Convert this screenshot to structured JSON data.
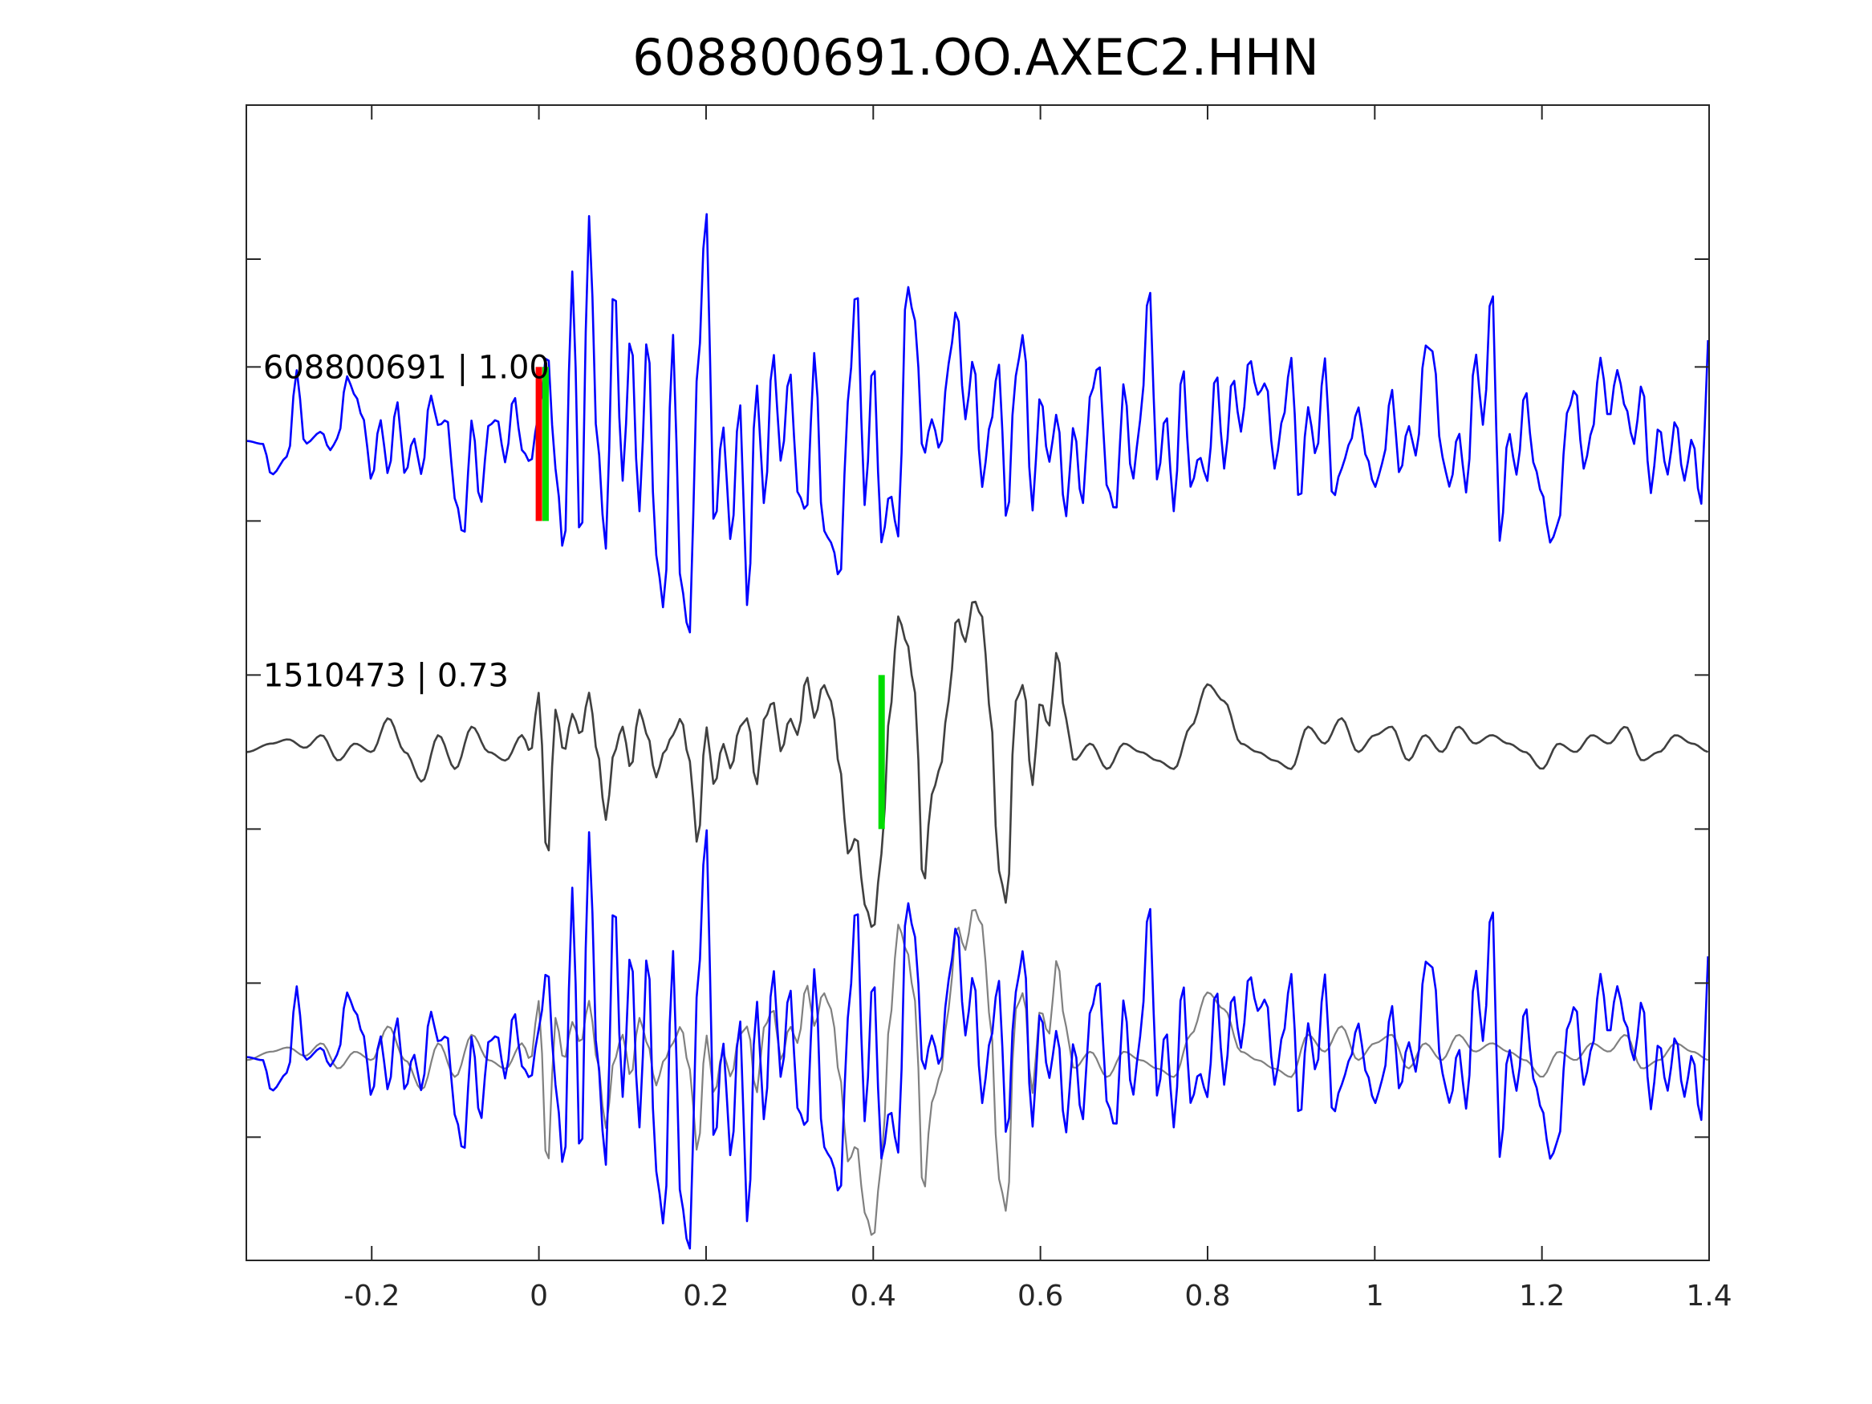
{
  "chart_data": {
    "type": "line",
    "title": "608800691.OO.AXEC2.HHN",
    "xlabel": "",
    "ylabel": "",
    "xlim": [
      -0.35,
      1.4
    ],
    "ylim": [
      -3.3,
      4.2
    ],
    "xticks": [
      -0.2,
      0,
      0.2,
      0.4,
      0.6,
      0.8,
      1,
      1.2,
      1.4
    ],
    "xtick_labels": [
      "-0.2",
      "0",
      "0.2",
      "0.4",
      "0.6",
      "0.8",
      "1",
      "1.2",
      "1.4"
    ],
    "yticks": [
      -2.5,
      -1.5,
      -0.5,
      0.5,
      1.5,
      2.5,
      3.2
    ],
    "grid": false,
    "colors": {
      "template": "#0000ff",
      "detection": "#404040",
      "detection_overlay": "#808080",
      "red_pick": "#ff0000",
      "green_pick": "#00dd00",
      "axis": "#262626"
    },
    "labels": [
      {
        "text": "608800691 | 1.00",
        "x": -0.33,
        "y": 2.5
      },
      {
        "text": "1510473 | 0.73",
        "x": -0.33,
        "y": 0.5
      }
    ],
    "traces": [
      {
        "role": "template",
        "offset": 2.0,
        "gain": 0.4,
        "dt": 0.00402,
        "points": [
          [
            -0.35,
            0.05
          ],
          [
            -0.33,
            0.0
          ],
          [
            -0.32,
            -0.5
          ],
          [
            -0.3,
            -0.2
          ],
          [
            -0.29,
            1.2
          ],
          [
            -0.28,
            0.0
          ],
          [
            -0.26,
            0.2
          ],
          [
            -0.25,
            -0.1
          ],
          [
            -0.24,
            0.1
          ],
          [
            -0.23,
            1.1
          ],
          [
            -0.22,
            0.8
          ],
          [
            -0.21,
            0.4
          ],
          [
            -0.2,
            -0.6
          ],
          [
            -0.19,
            0.4
          ],
          [
            -0.18,
            -0.5
          ],
          [
            -0.17,
            0.7
          ],
          [
            -0.16,
            -0.5
          ],
          [
            -0.15,
            0.1
          ],
          [
            -0.14,
            -0.5
          ],
          [
            -0.13,
            0.8
          ],
          [
            -0.12,
            0.3
          ],
          [
            -0.11,
            0.4
          ],
          [
            -0.1,
            -0.9
          ],
          [
            -0.09,
            -1.5
          ],
          [
            -0.08,
            0.4
          ],
          [
            -0.07,
            -1.0
          ],
          [
            -0.06,
            0.3
          ],
          [
            -0.05,
            0.4
          ],
          [
            -0.04,
            -0.3
          ],
          [
            -0.03,
            0.8
          ],
          [
            -0.02,
            -0.1
          ],
          [
            -0.01,
            -0.3
          ],
          [
            0.0,
            0.5
          ],
          [
            0.01,
            1.5
          ],
          [
            0.02,
            -0.4
          ],
          [
            0.03,
            -1.8
          ],
          [
            0.04,
            2.8
          ],
          [
            0.05,
            -1.8
          ],
          [
            0.06,
            3.7
          ],
          [
            0.07,
            0.0
          ],
          [
            0.08,
            -1.7
          ],
          [
            0.09,
            2.7
          ],
          [
            0.1,
            -0.6
          ],
          [
            0.11,
            1.8
          ],
          [
            0.12,
            -1.1
          ],
          [
            0.13,
            1.8
          ],
          [
            0.14,
            -1.8
          ],
          [
            0.15,
            -2.7
          ],
          [
            0.16,
            1.8
          ],
          [
            0.17,
            -2.3
          ],
          [
            0.18,
            -3.1
          ],
          [
            0.19,
            1.2
          ],
          [
            0.2,
            3.8
          ],
          [
            0.21,
            -1.4
          ],
          [
            0.22,
            0.3
          ],
          [
            0.23,
            -1.6
          ],
          [
            0.24,
            0.7
          ],
          [
            0.25,
            -2.7
          ],
          [
            0.26,
            1.0
          ],
          [
            0.27,
            -1.0
          ],
          [
            0.28,
            1.5
          ],
          [
            0.29,
            -0.3
          ],
          [
            0.3,
            1.2
          ],
          [
            0.31,
            -0.8
          ],
          [
            0.32,
            -1.1
          ],
          [
            0.33,
            1.5
          ],
          [
            0.34,
            -1.4
          ],
          [
            0.35,
            -1.6
          ],
          [
            0.36,
            -2.2
          ],
          [
            0.37,
            0.7
          ],
          [
            0.38,
            2.6
          ],
          [
            0.39,
            -1.0
          ],
          [
            0.4,
            1.4
          ],
          [
            0.41,
            -1.6
          ],
          [
            0.42,
            -0.8
          ],
          [
            0.43,
            -1.5
          ],
          [
            0.44,
            2.6
          ],
          [
            0.45,
            2.0
          ],
          [
            0.46,
            -0.2
          ],
          [
            0.47,
            0.4
          ],
          [
            0.48,
            -0.1
          ],
          [
            0.49,
            1.3
          ],
          [
            0.5,
            2.2
          ],
          [
            0.51,
            0.4
          ],
          [
            0.52,
            1.4
          ],
          [
            0.53,
            -0.7
          ],
          [
            0.54,
            0.3
          ],
          [
            0.55,
            1.3
          ],
          [
            0.56,
            -1.3
          ],
          [
            0.57,
            1.1
          ],
          [
            0.58,
            1.8
          ],
          [
            0.59,
            -1.1
          ],
          [
            0.6,
            0.8
          ],
          [
            0.61,
            -0.3
          ],
          [
            0.62,
            0.5
          ],
          [
            0.63,
            -1.2
          ],
          [
            0.64,
            0.3
          ],
          [
            0.65,
            -1.0
          ],
          [
            0.66,
            0.8
          ],
          [
            0.67,
            1.3
          ],
          [
            0.68,
            -0.7
          ],
          [
            0.69,
            -1.1
          ],
          [
            0.7,
            1.0
          ],
          [
            0.71,
            -0.6
          ],
          [
            0.72,
            0.4
          ],
          [
            0.73,
            2.6
          ],
          [
            0.74,
            -0.6
          ],
          [
            0.75,
            0.5
          ],
          [
            0.76,
            -1.1
          ],
          [
            0.77,
            1.3
          ],
          [
            0.78,
            -0.7
          ],
          [
            0.79,
            -0.2
          ],
          [
            0.8,
            -0.6
          ],
          [
            0.81,
            1.2
          ],
          [
            0.82,
            -0.4
          ],
          [
            0.83,
            1.1
          ],
          [
            0.84,
            0.2
          ],
          [
            0.85,
            1.4
          ],
          [
            0.86,
            0.8
          ],
          [
            0.87,
            1.0
          ],
          [
            0.88,
            -0.4
          ],
          [
            0.89,
            0.4
          ],
          [
            0.9,
            1.4
          ],
          [
            0.91,
            -1.0
          ],
          [
            0.92,
            0.6
          ],
          [
            0.93,
            -0.2
          ],
          [
            0.94,
            1.4
          ],
          [
            0.95,
            -0.9
          ],
          [
            0.96,
            -0.4
          ],
          [
            0.97,
            0.0
          ],
          [
            0.98,
            0.6
          ],
          [
            0.99,
            -0.2
          ],
          [
            1.0,
            -0.7
          ],
          [
            1.01,
            -0.3
          ],
          [
            1.02,
            0.9
          ],
          [
            1.03,
            -0.5
          ],
          [
            1.04,
            0.3
          ],
          [
            1.05,
            -0.2
          ],
          [
            1.06,
            1.6
          ],
          [
            1.07,
            1.5
          ],
          [
            1.08,
            -0.2
          ],
          [
            1.09,
            -0.7
          ],
          [
            1.1,
            0.2
          ],
          [
            1.11,
            -0.8
          ],
          [
            1.12,
            1.5
          ],
          [
            1.13,
            0.3
          ],
          [
            1.14,
            2.6
          ],
          [
            1.15,
            -1.6
          ],
          [
            1.16,
            0.2
          ],
          [
            1.17,
            -0.5
          ],
          [
            1.18,
            0.9
          ],
          [
            1.19,
            -0.3
          ],
          [
            1.2,
            -0.8
          ],
          [
            1.21,
            -1.6
          ],
          [
            1.22,
            -1.3
          ],
          [
            1.23,
            0.5
          ],
          [
            1.24,
            0.9
          ],
          [
            1.25,
            -0.4
          ],
          [
            1.26,
            0.2
          ],
          [
            1.27,
            1.4
          ],
          [
            1.28,
            0.4
          ],
          [
            1.29,
            1.2
          ],
          [
            1.3,
            0.6
          ],
          [
            1.31,
            0.0
          ],
          [
            1.32,
            1.0
          ],
          [
            1.33,
            -0.8
          ],
          [
            1.34,
            0.3
          ],
          [
            1.35,
            -0.5
          ],
          [
            1.36,
            0.4
          ],
          [
            1.37,
            -0.6
          ],
          [
            1.38,
            0.1
          ],
          [
            1.39,
            -1.0
          ],
          [
            1.4,
            1.8
          ]
        ]
      },
      {
        "role": "detection",
        "offset": 0.0,
        "gain": 0.55,
        "dt": 0.00402,
        "points": [
          [
            -0.35,
            0.0
          ],
          [
            -0.32,
            0.1
          ],
          [
            -0.3,
            0.15
          ],
          [
            -0.28,
            0.05
          ],
          [
            -0.26,
            0.2
          ],
          [
            -0.24,
            -0.1
          ],
          [
            -0.22,
            0.1
          ],
          [
            -0.2,
            0.0
          ],
          [
            -0.18,
            0.4
          ],
          [
            -0.16,
            0.0
          ],
          [
            -0.14,
            -0.35
          ],
          [
            -0.12,
            0.2
          ],
          [
            -0.1,
            -0.2
          ],
          [
            -0.08,
            0.3
          ],
          [
            -0.06,
            0.0
          ],
          [
            -0.04,
            -0.1
          ],
          [
            -0.02,
            0.2
          ],
          [
            -0.01,
            0.0
          ],
          [
            0.0,
            0.7
          ],
          [
            0.01,
            -1.3
          ],
          [
            0.02,
            0.5
          ],
          [
            0.03,
            0.0
          ],
          [
            0.04,
            0.45
          ],
          [
            0.05,
            0.2
          ],
          [
            0.06,
            0.7
          ],
          [
            0.07,
            0.0
          ],
          [
            0.08,
            -0.8
          ],
          [
            0.09,
            0.0
          ],
          [
            0.1,
            0.3
          ],
          [
            0.11,
            -0.2
          ],
          [
            0.12,
            0.5
          ],
          [
            0.13,
            0.2
          ],
          [
            0.14,
            -0.3
          ],
          [
            0.15,
            0.0
          ],
          [
            0.16,
            0.2
          ],
          [
            0.17,
            0.4
          ],
          [
            0.18,
            -0.1
          ],
          [
            0.19,
            -1.1
          ],
          [
            0.2,
            0.3
          ],
          [
            0.21,
            -0.4
          ],
          [
            0.22,
            0.1
          ],
          [
            0.23,
            -0.2
          ],
          [
            0.24,
            0.3
          ],
          [
            0.25,
            0.4
          ],
          [
            0.26,
            -0.4
          ],
          [
            0.27,
            0.4
          ],
          [
            0.28,
            0.6
          ],
          [
            0.29,
            0.0
          ],
          [
            0.3,
            0.4
          ],
          [
            0.31,
            0.2
          ],
          [
            0.32,
            0.9
          ],
          [
            0.33,
            0.4
          ],
          [
            0.34,
            0.8
          ],
          [
            0.35,
            0.6
          ],
          [
            0.36,
            -0.2
          ],
          [
            0.37,
            -1.2
          ],
          [
            0.38,
            -1.0
          ],
          [
            0.39,
            -1.8
          ],
          [
            0.4,
            -2.1
          ],
          [
            0.41,
            -1.2
          ],
          [
            0.42,
            0.5
          ],
          [
            0.43,
            1.6
          ],
          [
            0.44,
            1.3
          ],
          [
            0.45,
            0.7
          ],
          [
            0.46,
            -1.6
          ],
          [
            0.47,
            -0.5
          ],
          [
            0.48,
            -0.2
          ],
          [
            0.49,
            0.6
          ],
          [
            0.5,
            1.6
          ],
          [
            0.51,
            1.3
          ],
          [
            0.52,
            1.8
          ],
          [
            0.53,
            1.6
          ],
          [
            0.54,
            0.5
          ],
          [
            0.55,
            -1.4
          ],
          [
            0.56,
            -1.8
          ],
          [
            0.57,
            0.6
          ],
          [
            0.58,
            0.8
          ],
          [
            0.59,
            -0.4
          ],
          [
            0.6,
            0.6
          ],
          [
            0.61,
            0.3
          ],
          [
            0.62,
            1.2
          ],
          [
            0.63,
            0.4
          ],
          [
            0.64,
            -0.1
          ],
          [
            0.66,
            0.1
          ],
          [
            0.68,
            -0.2
          ],
          [
            0.7,
            0.1
          ],
          [
            0.72,
            0.0
          ],
          [
            0.74,
            -0.1
          ],
          [
            0.76,
            -0.2
          ],
          [
            0.78,
            0.3
          ],
          [
            0.8,
            0.8
          ],
          [
            0.82,
            0.6
          ],
          [
            0.84,
            0.1
          ],
          [
            0.86,
            0.0
          ],
          [
            0.88,
            -0.1
          ],
          [
            0.9,
            -0.2
          ],
          [
            0.92,
            0.3
          ],
          [
            0.94,
            0.1
          ],
          [
            0.96,
            0.4
          ],
          [
            0.98,
            0.0
          ],
          [
            1.0,
            0.2
          ],
          [
            1.02,
            0.3
          ],
          [
            1.04,
            -0.1
          ],
          [
            1.06,
            0.2
          ],
          [
            1.08,
            0.0
          ],
          [
            1.1,
            0.3
          ],
          [
            1.12,
            0.1
          ],
          [
            1.14,
            0.2
          ],
          [
            1.16,
            0.1
          ],
          [
            1.18,
            0.0
          ],
          [
            1.2,
            -0.2
          ],
          [
            1.22,
            0.1
          ],
          [
            1.24,
            0.0
          ],
          [
            1.26,
            0.2
          ],
          [
            1.28,
            0.1
          ],
          [
            1.3,
            0.3
          ],
          [
            1.32,
            -0.1
          ],
          [
            1.34,
            0.0
          ],
          [
            1.36,
            0.2
          ],
          [
            1.38,
            0.1
          ],
          [
            1.4,
            0.0
          ]
        ]
      },
      {
        "role": "detection_overlay",
        "offset": -2.0,
        "gain": 0.55,
        "dt": 0.00402,
        "source": "detection"
      },
      {
        "role": "template_overlay",
        "offset": -2.0,
        "gain": 0.4,
        "dt": 0.00402,
        "source": "template"
      }
    ],
    "picks": [
      {
        "color": "red_pick",
        "x": 0.0,
        "y_range": [
          1.5,
          2.5
        ]
      },
      {
        "color": "green_pick",
        "x": 0.008,
        "y_range": [
          1.5,
          2.5
        ]
      },
      {
        "color": "green_pick",
        "x": 0.41,
        "y_range": [
          -0.5,
          0.5
        ]
      }
    ]
  }
}
